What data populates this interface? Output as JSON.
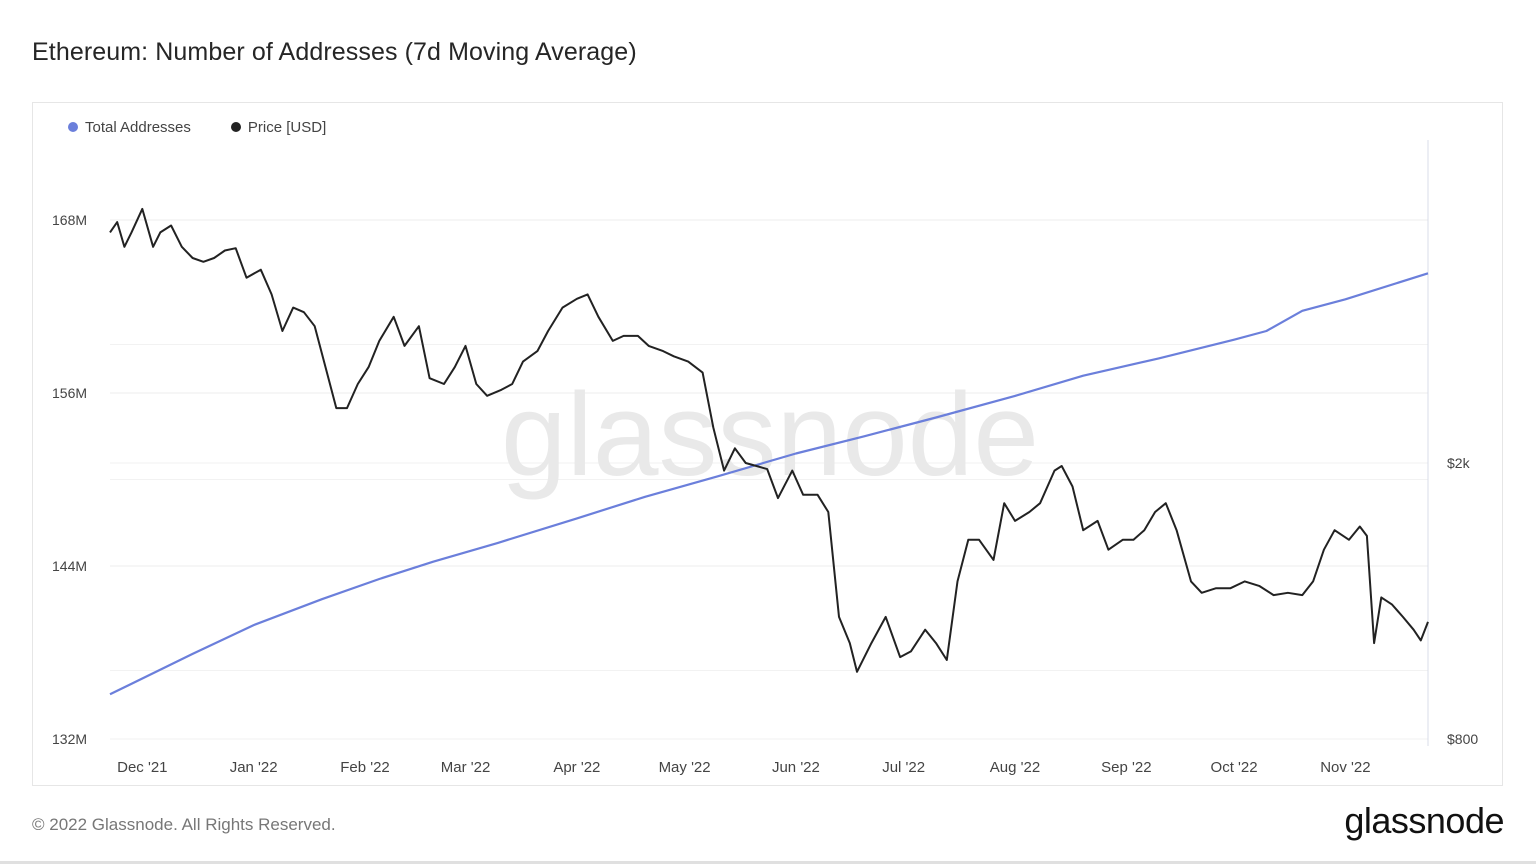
{
  "header": {
    "title": "Ethereum: Number of Addresses (7d Moving Average)"
  },
  "footer": {
    "copyright": "© 2022 Glassnode. All Rights Reserved.",
    "brand": "glassnode"
  },
  "watermark": "glassnode",
  "colors": {
    "total_addresses": "#6b7fdb",
    "price": "#222222",
    "grid": "#ececec",
    "axis_text": "#444444"
  },
  "chart_data": {
    "type": "line",
    "title": "Ethereum: Number of Addresses (7d Moving Average)",
    "grid": true,
    "legend_position": "top-left",
    "x_tick_labels": [
      "Dec '21",
      "Jan '22",
      "Feb '22",
      "Mar '22",
      "Apr '22",
      "May '22",
      "Jun '22",
      "Jul '22",
      "Aug '22",
      "Sep '22",
      "Oct '22",
      "Nov '22"
    ],
    "x_tick_dates": [
      "2021-12-01",
      "2022-01-01",
      "2022-02-01",
      "2022-03-01",
      "2022-04-01",
      "2022-05-01",
      "2022-06-01",
      "2022-07-01",
      "2022-08-01",
      "2022-09-01",
      "2022-10-01",
      "2022-11-01"
    ],
    "x_range": [
      "2021-11-22",
      "2022-11-24"
    ],
    "y_left": {
      "label": "",
      "range": [
        132,
        168
      ],
      "ticks": [
        132,
        144,
        156,
        168
      ],
      "tick_labels": [
        "132M",
        "144M",
        "156M",
        "168M"
      ],
      "unit": "M"
    },
    "y_right": {
      "label": "",
      "scale": "log",
      "range": [
        800,
        5000
      ],
      "ticks": [
        800,
        2000
      ],
      "tick_labels": [
        "$800",
        "$2k"
      ]
    },
    "series": [
      {
        "name": "Total Addresses",
        "axis": "left",
        "color": "#6b7fdb",
        "points": [
          [
            "2021-11-22",
            135.1
          ],
          [
            "2021-12-15",
            137.9
          ],
          [
            "2022-01-01",
            139.9
          ],
          [
            "2022-01-20",
            141.7
          ],
          [
            "2022-02-05",
            143.1
          ],
          [
            "2022-02-20",
            144.3
          ],
          [
            "2022-03-10",
            145.6
          ],
          [
            "2022-04-01",
            147.3
          ],
          [
            "2022-04-20",
            148.8
          ],
          [
            "2022-05-10",
            150.2
          ],
          [
            "2022-06-01",
            151.8
          ],
          [
            "2022-06-20",
            153.0
          ],
          [
            "2022-07-10",
            154.3
          ],
          [
            "2022-08-01",
            155.8
          ],
          [
            "2022-08-20",
            157.2
          ],
          [
            "2022-09-10",
            158.4
          ],
          [
            "2022-10-01",
            159.7
          ],
          [
            "2022-10-10",
            160.3
          ],
          [
            "2022-10-20",
            161.7
          ],
          [
            "2022-11-01",
            162.5
          ],
          [
            "2022-11-24",
            164.3
          ]
        ]
      },
      {
        "name": "Price [USD]",
        "axis": "right",
        "color": "#222222",
        "points": [
          [
            "2021-11-22",
            4300
          ],
          [
            "2021-11-24",
            4450
          ],
          [
            "2021-11-26",
            4100
          ],
          [
            "2021-11-28",
            4300
          ],
          [
            "2021-12-01",
            4650
          ],
          [
            "2021-12-04",
            4100
          ],
          [
            "2021-12-06",
            4300
          ],
          [
            "2021-12-09",
            4400
          ],
          [
            "2021-12-12",
            4100
          ],
          [
            "2021-12-15",
            3950
          ],
          [
            "2021-12-18",
            3900
          ],
          [
            "2021-12-21",
            3950
          ],
          [
            "2021-12-24",
            4050
          ],
          [
            "2021-12-27",
            4080
          ],
          [
            "2021-12-30",
            3700
          ],
          [
            "2022-01-03",
            3800
          ],
          [
            "2022-01-06",
            3500
          ],
          [
            "2022-01-09",
            3100
          ],
          [
            "2022-01-12",
            3350
          ],
          [
            "2022-01-15",
            3300
          ],
          [
            "2022-01-18",
            3150
          ],
          [
            "2022-01-21",
            2750
          ],
          [
            "2022-01-24",
            2400
          ],
          [
            "2022-01-27",
            2400
          ],
          [
            "2022-01-30",
            2600
          ],
          [
            "2022-02-02",
            2750
          ],
          [
            "2022-02-05",
            3000
          ],
          [
            "2022-02-09",
            3250
          ],
          [
            "2022-02-12",
            2950
          ],
          [
            "2022-02-16",
            3150
          ],
          [
            "2022-02-19",
            2650
          ],
          [
            "2022-02-23",
            2600
          ],
          [
            "2022-02-26",
            2750
          ],
          [
            "2022-03-01",
            2950
          ],
          [
            "2022-03-04",
            2600
          ],
          [
            "2022-03-07",
            2500
          ],
          [
            "2022-03-11",
            2550
          ],
          [
            "2022-03-14",
            2600
          ],
          [
            "2022-03-17",
            2800
          ],
          [
            "2022-03-21",
            2900
          ],
          [
            "2022-03-24",
            3100
          ],
          [
            "2022-03-28",
            3350
          ],
          [
            "2022-04-01",
            3450
          ],
          [
            "2022-04-04",
            3500
          ],
          [
            "2022-04-07",
            3250
          ],
          [
            "2022-04-11",
            3000
          ],
          [
            "2022-04-14",
            3050
          ],
          [
            "2022-04-18",
            3050
          ],
          [
            "2022-04-21",
            2950
          ],
          [
            "2022-04-25",
            2900
          ],
          [
            "2022-04-28",
            2850
          ],
          [
            "2022-05-02",
            2800
          ],
          [
            "2022-05-06",
            2700
          ],
          [
            "2022-05-09",
            2250
          ],
          [
            "2022-05-12",
            1950
          ],
          [
            "2022-05-15",
            2100
          ],
          [
            "2022-05-18",
            2000
          ],
          [
            "2022-05-21",
            1980
          ],
          [
            "2022-05-24",
            1960
          ],
          [
            "2022-05-27",
            1780
          ],
          [
            "2022-05-31",
            1950
          ],
          [
            "2022-06-03",
            1800
          ],
          [
            "2022-06-07",
            1800
          ],
          [
            "2022-06-10",
            1700
          ],
          [
            "2022-06-13",
            1200
          ],
          [
            "2022-06-16",
            1100
          ],
          [
            "2022-06-18",
            1000
          ],
          [
            "2022-06-22",
            1100
          ],
          [
            "2022-06-26",
            1200
          ],
          [
            "2022-06-30",
            1050
          ],
          [
            "2022-07-03",
            1070
          ],
          [
            "2022-07-07",
            1150
          ],
          [
            "2022-07-10",
            1100
          ],
          [
            "2022-07-13",
            1040
          ],
          [
            "2022-07-16",
            1350
          ],
          [
            "2022-07-19",
            1550
          ],
          [
            "2022-07-22",
            1550
          ],
          [
            "2022-07-26",
            1450
          ],
          [
            "2022-07-29",
            1750
          ],
          [
            "2022-08-01",
            1650
          ],
          [
            "2022-08-05",
            1700
          ],
          [
            "2022-08-08",
            1750
          ],
          [
            "2022-08-12",
            1950
          ],
          [
            "2022-08-14",
            1980
          ],
          [
            "2022-08-17",
            1850
          ],
          [
            "2022-08-20",
            1600
          ],
          [
            "2022-08-24",
            1650
          ],
          [
            "2022-08-27",
            1500
          ],
          [
            "2022-08-31",
            1550
          ],
          [
            "2022-09-03",
            1550
          ],
          [
            "2022-09-06",
            1600
          ],
          [
            "2022-09-09",
            1700
          ],
          [
            "2022-09-12",
            1750
          ],
          [
            "2022-09-15",
            1600
          ],
          [
            "2022-09-19",
            1350
          ],
          [
            "2022-09-22",
            1300
          ],
          [
            "2022-09-26",
            1320
          ],
          [
            "2022-09-30",
            1320
          ],
          [
            "2022-10-04",
            1350
          ],
          [
            "2022-10-08",
            1330
          ],
          [
            "2022-10-12",
            1290
          ],
          [
            "2022-10-16",
            1300
          ],
          [
            "2022-10-20",
            1290
          ],
          [
            "2022-10-23",
            1350
          ],
          [
            "2022-10-26",
            1500
          ],
          [
            "2022-10-29",
            1600
          ],
          [
            "2022-11-02",
            1550
          ],
          [
            "2022-11-05",
            1620
          ],
          [
            "2022-11-07",
            1570
          ],
          [
            "2022-11-09",
            1100
          ],
          [
            "2022-11-11",
            1280
          ],
          [
            "2022-11-14",
            1250
          ],
          [
            "2022-11-17",
            1200
          ],
          [
            "2022-11-20",
            1150
          ],
          [
            "2022-11-22",
            1110
          ],
          [
            "2022-11-24",
            1180
          ]
        ]
      }
    ]
  }
}
